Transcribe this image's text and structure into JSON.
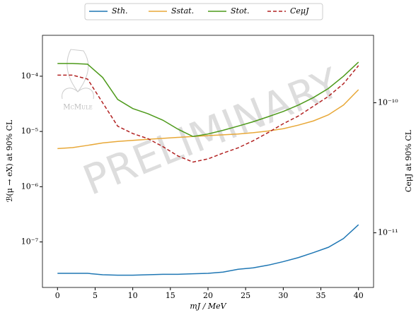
{
  "chart_data": {
    "type": "line",
    "xlabel": "mJ / MeV",
    "ylabel": "ℬ(μ → eX) at 90% CL",
    "y2label": "CeμJ at 90% CL",
    "annotations": [
      "PRELIMINARY",
      "McMule"
    ],
    "log_y": true,
    "log_y2": true,
    "legend": "top",
    "x": [
      0,
      2,
      4,
      6,
      8,
      10,
      12,
      14,
      16,
      18,
      20,
      22,
      24,
      26,
      28,
      30,
      32,
      34,
      36,
      38,
      40
    ],
    "xlim": [
      -2,
      42
    ],
    "xticks": [
      0,
      5,
      10,
      15,
      20,
      25,
      30,
      35,
      40
    ],
    "ylim": [
      1.5e-08,
      0.00055
    ],
    "yticks": [
      {
        "value": 1e-07,
        "label": "10⁻⁷"
      },
      {
        "value": 1e-06,
        "label": "10⁻⁶"
      },
      {
        "value": 1e-05,
        "label": "10⁻⁵"
      },
      {
        "value": 0.0001,
        "label": "10⁻⁴"
      }
    ],
    "y2lim": [
      3.8e-12,
      3.3e-10
    ],
    "y2ticks": [
      {
        "value": 1e-11,
        "label": "10⁻¹¹"
      },
      {
        "value": 1e-10,
        "label": "10⁻¹⁰"
      }
    ],
    "series": [
      {
        "name": "Sth.",
        "color": "#1f77b4",
        "dashed": false,
        "values": [
          2.7e-08,
          2.7e-08,
          2.7e-08,
          2.55e-08,
          2.5e-08,
          2.5e-08,
          2.55e-08,
          2.6e-08,
          2.6e-08,
          2.65e-08,
          2.7e-08,
          2.85e-08,
          3.2e-08,
          3.4e-08,
          3.8e-08,
          4.4e-08,
          5.2e-08,
          6.4e-08,
          8e-08,
          1.15e-07,
          2.05e-07
        ]
      },
      {
        "name": "Sstat.",
        "color": "#e8a838",
        "dashed": false,
        "values": [
          4.9e-06,
          5.1e-06,
          5.6e-06,
          6.2e-06,
          6.6e-06,
          6.9e-06,
          7.2e-06,
          7.5e-06,
          7.8e-06,
          8.1e-06,
          8.4e-06,
          8.7e-06,
          9e-06,
          9.5e-06,
          1.02e-05,
          1.12e-05,
          1.3e-05,
          1.55e-05,
          2e-05,
          3e-05,
          5.7e-05
        ]
      },
      {
        "name": "Stot.",
        "color": "#4d9a1a",
        "dashed": false,
        "values": [
          0.00017,
          0.00017,
          0.000165,
          9.5e-05,
          3.8e-05,
          2.6e-05,
          2.1e-05,
          1.6e-05,
          1.1e-05,
          8.1e-06,
          9e-06,
          1.05e-05,
          1.25e-05,
          1.5e-05,
          1.85e-05,
          2.3e-05,
          3e-05,
          4.1e-05,
          6e-05,
          0.0001,
          0.00018
        ]
      },
      {
        "name": "CeμJ",
        "color": "#b22222",
        "dashed": true,
        "axis": "y2",
        "values": [
          1.63e-10,
          1.63e-10,
          1.52e-10,
          1e-10,
          6.6e-11,
          5.8e-11,
          5.3e-11,
          4.6e-11,
          3.9e-11,
          3.5e-11,
          3.7e-11,
          4.1e-11,
          4.5e-11,
          5.1e-11,
          5.9e-11,
          6.9e-11,
          7.9e-11,
          9.4e-11,
          1.12e-10,
          1.4e-10,
          1.93e-10
        ]
      }
    ]
  }
}
